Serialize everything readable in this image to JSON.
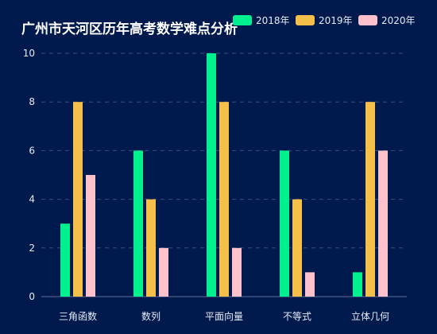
{
  "chart_data": {
    "type": "bar",
    "title": "广州市天河区历年高考数学难点分析",
    "categories": [
      "三角函数",
      "数列",
      "平面向量",
      "不等式",
      "立体几何"
    ],
    "series": [
      {
        "name": "2018年",
        "values": [
          3,
          6,
          10,
          6,
          1
        ],
        "color": "#00f08f"
      },
      {
        "name": "2019年",
        "values": [
          8,
          4,
          8,
          4,
          8
        ],
        "color": "#f5c04a"
      },
      {
        "name": "2020年",
        "values": [
          5,
          2,
          2,
          1,
          6
        ],
        "color": "#ffc2cc"
      }
    ],
    "ylim": [
      0,
      10
    ],
    "yticks": [
      0,
      2,
      4,
      6,
      8,
      10
    ],
    "xlabel": "",
    "ylabel": "",
    "grid": true,
    "legend_position": "top-right"
  },
  "colors": {
    "background": "#011a4d",
    "text": "#ffffff",
    "axis_text": "#e6ebf5",
    "grid": "#33507f",
    "axis_line": "#5a6f99"
  }
}
